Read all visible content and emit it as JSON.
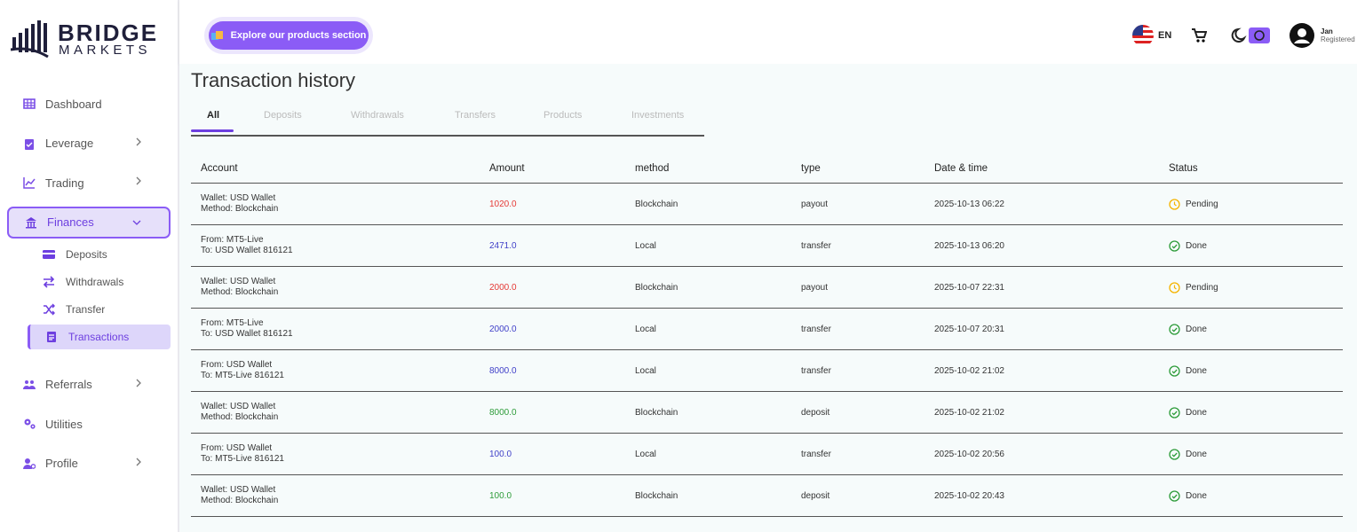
{
  "brand": {
    "name": "BRIDGE",
    "sub": "MARKETS"
  },
  "header": {
    "explore": "Explore our products section",
    "language": "EN",
    "user": {
      "name": "Jan",
      "role": "Registered"
    }
  },
  "sidebar": {
    "items": [
      {
        "label": "Dashboard",
        "icon": "grid",
        "chevron": "none"
      },
      {
        "label": "Leverage",
        "icon": "clip",
        "chevron": "right"
      },
      {
        "label": "Trading",
        "icon": "chart",
        "chevron": "right"
      },
      {
        "label": "Finances",
        "icon": "bank",
        "chevron": "down",
        "active": true,
        "children": [
          {
            "label": "Deposits",
            "icon": "card"
          },
          {
            "label": "Withdrawals",
            "icon": "swap"
          },
          {
            "label": "Transfer",
            "icon": "shuffle"
          },
          {
            "label": "Transactions",
            "icon": "doc",
            "active": true
          }
        ]
      },
      {
        "label": "Referrals",
        "icon": "people",
        "chevron": "right"
      },
      {
        "label": "Utilities",
        "icon": "gears",
        "chevron": "none"
      },
      {
        "label": "Profile",
        "icon": "person",
        "chevron": "right"
      }
    ]
  },
  "page": {
    "title": "Transaction history",
    "tabs": [
      "All",
      "Deposits",
      "Withdrawals",
      "Transfers",
      "Products",
      "Investments"
    ],
    "active_tab": 0
  },
  "table": {
    "columns": [
      "Account",
      "Amount",
      "method",
      "type",
      "Date & time",
      "Status"
    ],
    "rows": [
      [
        "Wallet: USD Wallet",
        "Method: Blockchain",
        "1020.0",
        "Blockchain",
        "payout",
        "2025-10-13 06:22",
        "Pending"
      ],
      [
        "From: MT5-Live",
        "To: USD Wallet 816121",
        "2471.0",
        "Local",
        "transfer",
        "2025-10-13 06:20",
        "Done"
      ],
      [
        "Wallet: USD Wallet",
        "Method: Blockchain",
        "2000.0",
        "Blockchain",
        "payout",
        "2025-10-07 22:31",
        "Pending"
      ],
      [
        "From: MT5-Live",
        "To: USD Wallet 816121",
        "2000.0",
        "Local",
        "transfer",
        "2025-10-07 20:31",
        "Done"
      ],
      [
        "From: USD Wallet",
        "To: MT5-Live 816121",
        "8000.0",
        "Local",
        "transfer",
        "2025-10-02 21:02",
        "Done"
      ],
      [
        "Wallet: USD Wallet",
        "Method: Blockchain",
        "8000.0",
        "Blockchain",
        "deposit",
        "2025-10-02 21:02",
        "Done"
      ],
      [
        "From: USD Wallet",
        "To: MT5-Live 816121",
        "100.0",
        "Local",
        "transfer",
        "2025-10-02 20:56",
        "Done"
      ],
      [
        "Wallet: USD Wallet",
        "Method: Blockchain",
        "100.0",
        "Blockchain",
        "deposit",
        "2025-10-02 20:43",
        "Done"
      ]
    ]
  }
}
